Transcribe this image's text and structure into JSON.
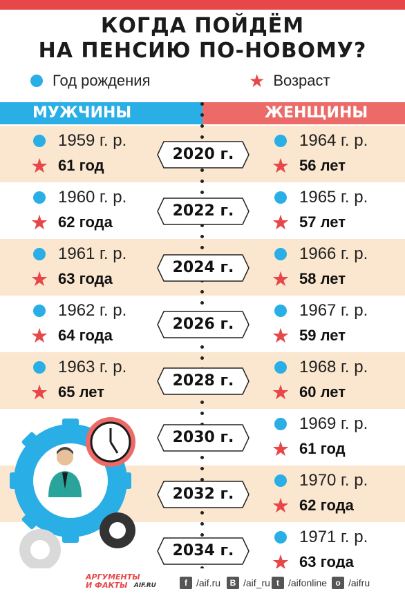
{
  "title": {
    "line1": "КОГДА ПОЙДЁМ",
    "line2": "НА ПЕНСИЮ ПО-НОВОМУ?"
  },
  "legend": {
    "birth_year": "Год рождения",
    "age": "Возраст"
  },
  "headers": {
    "men": "МУЖЧИНЫ",
    "women": "ЖЕНЩИНЫ"
  },
  "rows": [
    {
      "year": "2020 г.",
      "men": {
        "birth": "1959 г. р.",
        "age": "61 год"
      },
      "women": {
        "birth": "1964 г. р.",
        "age": "56 лет"
      }
    },
    {
      "year": "2022 г.",
      "men": {
        "birth": "1960 г. р.",
        "age": "62 года"
      },
      "women": {
        "birth": "1965 г. р.",
        "age": "57 лет"
      }
    },
    {
      "year": "2024 г.",
      "men": {
        "birth": "1961 г. р.",
        "age": "63 года"
      },
      "women": {
        "birth": "1966 г. р.",
        "age": "58 лет"
      }
    },
    {
      "year": "2026 г.",
      "men": {
        "birth": "1962 г. р.",
        "age": "64 года"
      },
      "women": {
        "birth": "1967 г. р.",
        "age": "59 лет"
      }
    },
    {
      "year": "2028 г.",
      "men": {
        "birth": "1963 г. р.",
        "age": "65 лет"
      },
      "women": {
        "birth": "1968 г. р.",
        "age": "60 лет"
      }
    },
    {
      "year": "2030 г.",
      "women": {
        "birth": "1969 г. р.",
        "age": "61 год"
      }
    },
    {
      "year": "2032 г.",
      "women": {
        "birth": "1970 г. р.",
        "age": "62 года"
      }
    },
    {
      "year": "2034 г.",
      "women": {
        "birth": "1971 г. р.",
        "age": "63 года"
      }
    }
  ],
  "footer": {
    "logo_line1": "АРГУМЕНТЫ",
    "logo_line2": "И ФАКТЫ",
    "logo_site": "AIF.RU",
    "facebook": "/aif.ru",
    "vk": "/aif_ru",
    "twitter": "/aifonline",
    "ok": "/aifru"
  },
  "colors": {
    "accent_red": "#e8474a",
    "men_blue": "#29aee6",
    "women_red": "#ec6b68",
    "beige": "#fbe7cf"
  },
  "icons": [
    "blue-dot-icon",
    "red-star-icon",
    "gear-icon",
    "clock-icon",
    "person-icon"
  ]
}
